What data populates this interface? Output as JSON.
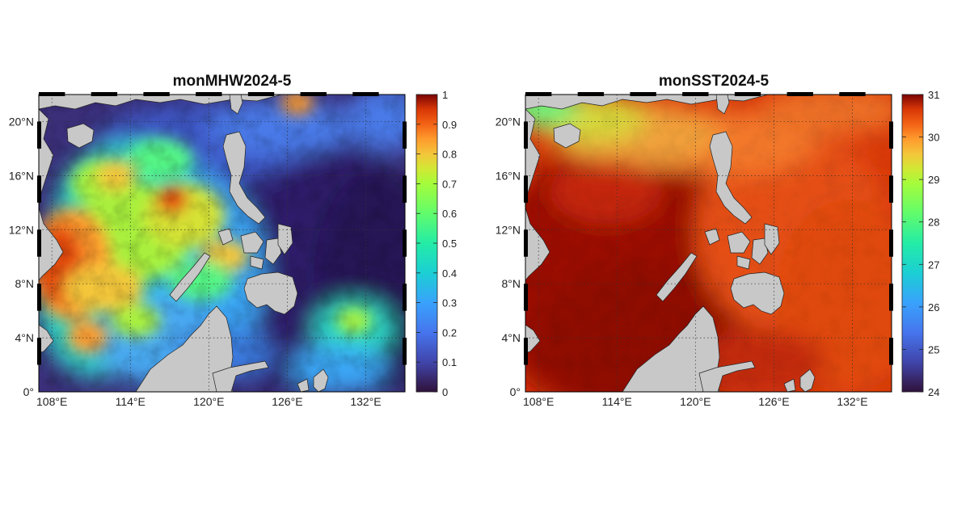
{
  "figure": {
    "panels": [
      {
        "id": "mhw",
        "title": "monMHW2024-5",
        "x_ticks": [
          "108°E",
          "114°E",
          "120°E",
          "126°E",
          "132°E"
        ],
        "y_ticks": [
          "0°",
          "4°N",
          "8°N",
          "12°N",
          "16°N",
          "20°N"
        ],
        "colorbar": {
          "colormap": "turbo",
          "min": 0,
          "max": 1,
          "labels": [
            "1",
            "0.9",
            "0.8",
            "0.7",
            "0.6",
            "0.5",
            "0.4",
            "0.3",
            "0.2",
            "0.1",
            "0"
          ]
        }
      },
      {
        "id": "sst",
        "title": "monSST2024-5",
        "x_ticks": [
          "108°E",
          "114°E",
          "120°E",
          "126°E",
          "132°E"
        ],
        "y_ticks": [
          "0°",
          "4°N",
          "8°N",
          "12°N",
          "16°N",
          "20°N"
        ],
        "colorbar": {
          "colormap": "turbo",
          "min": 24,
          "max": 31,
          "labels": [
            "31",
            "30",
            "29",
            "28",
            "27",
            "26",
            "25",
            "24"
          ]
        }
      }
    ],
    "colors": {
      "land": "#c8c8c8",
      "coast": "#222222",
      "grid": "#333333"
    }
  },
  "chart_data": [
    {
      "type": "heatmap",
      "title": "monMHW2024-5",
      "xlim": [
        107,
        135
      ],
      "ylim": [
        0,
        22
      ],
      "x_ticks": [
        108,
        114,
        120,
        126,
        132
      ],
      "y_ticks": [
        0,
        4,
        8,
        12,
        16,
        20
      ],
      "value_range": [
        0,
        1
      ],
      "colormap": "turbo",
      "grid": true
    },
    {
      "type": "heatmap",
      "title": "monSST2024-5",
      "xlim": [
        107,
        135
      ],
      "ylim": [
        0,
        22
      ],
      "x_ticks": [
        108,
        114,
        120,
        126,
        132
      ],
      "y_ticks": [
        0,
        4,
        8,
        12,
        16,
        20
      ],
      "value_range": [
        24,
        31
      ],
      "colormap": "turbo",
      "grid": true
    }
  ]
}
